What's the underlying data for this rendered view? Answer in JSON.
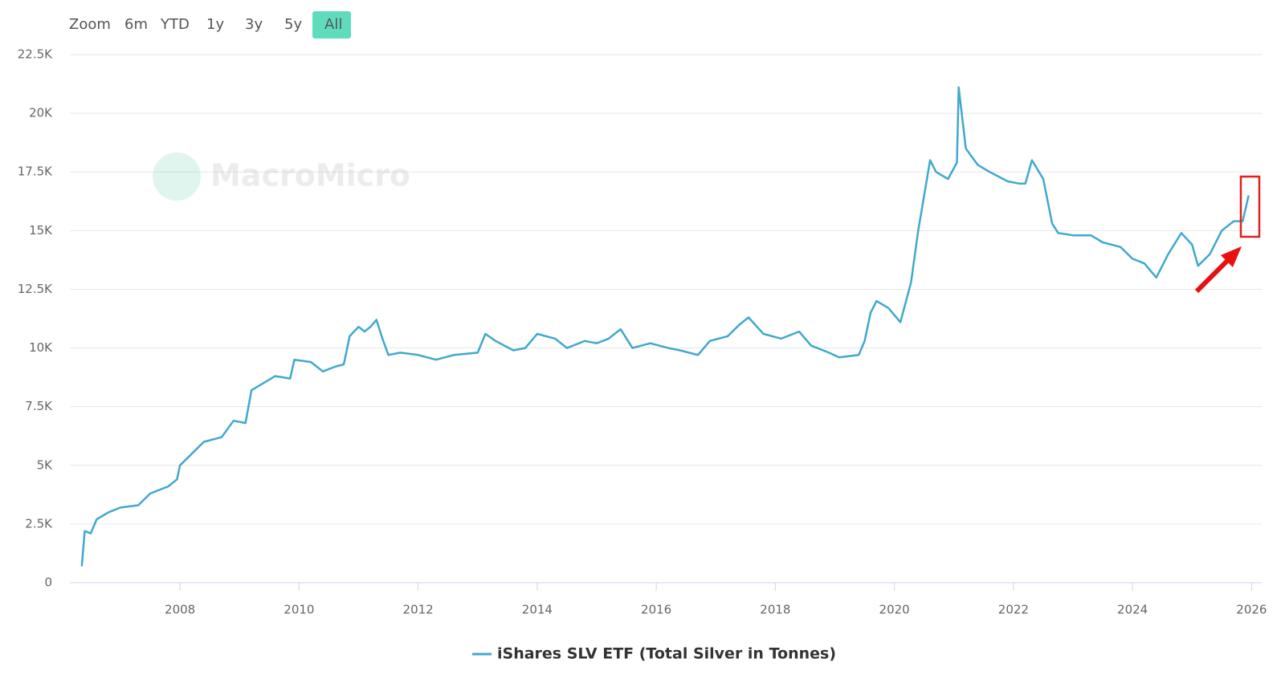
{
  "range_selector": {
    "label": "Zoom",
    "buttons": [
      "6m",
      "YTD",
      "1y",
      "3y",
      "5y",
      "All"
    ],
    "active": 5
  },
  "watermark": "MacroMicro",
  "chart_data": {
    "type": "line",
    "x": [
      2006.35,
      2006.4,
      2006.5,
      2006.6,
      2006.8,
      2007.0,
      2007.3,
      2007.5,
      2007.8,
      2007.95,
      2008.0,
      2008.2,
      2008.4,
      2008.7,
      2008.9,
      2009.1,
      2009.2,
      2009.4,
      2009.6,
      2009.85,
      2009.92,
      2010.2,
      2010.4,
      2010.6,
      2010.75,
      2010.85,
      2011.0,
      2011.1,
      2011.2,
      2011.3,
      2011.4,
      2011.5,
      2011.7,
      2012.0,
      2012.3,
      2012.6,
      2013.0,
      2013.13,
      2013.3,
      2013.6,
      2013.8,
      2014.0,
      2014.3,
      2014.5,
      2014.8,
      2015.0,
      2015.2,
      2015.4,
      2015.6,
      2015.9,
      2016.2,
      2016.4,
      2016.7,
      2016.9,
      2017.2,
      2017.4,
      2017.55,
      2017.8,
      2018.1,
      2018.4,
      2018.6,
      2018.9,
      2019.07,
      2019.4,
      2019.5,
      2019.6,
      2019.7,
      2019.9,
      2020.1,
      2020.28,
      2020.4,
      2020.5,
      2020.6,
      2020.7,
      2020.9,
      2021.05,
      2021.08,
      2021.2,
      2021.4,
      2021.6,
      2021.9,
      2022.1,
      2022.2,
      2022.31,
      2022.5,
      2022.65,
      2022.75,
      2023.0,
      2023.3,
      2023.5,
      2023.8,
      2024.0,
      2024.2,
      2024.4,
      2024.6,
      2024.82,
      2025.0,
      2025.1,
      2025.3,
      2025.5,
      2025.7,
      2025.85,
      2025.95
    ],
    "series": [
      {
        "name": "iShares SLV ETF (Total Silver in Tonnes)",
        "color": "#41a8cc",
        "values": [
          700,
          2200,
          2100,
          2700,
          3000,
          3200,
          3300,
          3800,
          4100,
          4400,
          5000,
          5500,
          6000,
          6200,
          6900,
          6800,
          8200,
          8500,
          8800,
          8700,
          9500,
          9400,
          9000,
          9200,
          9300,
          10500,
          10900,
          10700,
          10900,
          11200,
          10400,
          9700,
          9800,
          9700,
          9500,
          9700,
          9800,
          10600,
          10300,
          9900,
          10000,
          10600,
          10400,
          10000,
          10300,
          10200,
          10400,
          10800,
          10000,
          10200,
          10000,
          9900,
          9700,
          10300,
          10500,
          11000,
          11300,
          10600,
          10400,
          10700,
          10100,
          9800,
          9600,
          9700,
          10300,
          11500,
          12000,
          11700,
          11100,
          12800,
          15000,
          16500,
          18000,
          17500,
          17200,
          17900,
          21100,
          18500,
          17800,
          17500,
          17100,
          17000,
          17000,
          18000,
          17200,
          15300,
          14900,
          14800,
          14800,
          14500,
          14300,
          13800,
          13600,
          13000,
          14000,
          14900,
          14400,
          13500,
          14000,
          15000,
          15400,
          15400,
          16500
        ]
      }
    ],
    "xlim": [
      2006.15,
      2026.17
    ],
    "xticks": [
      2008,
      2010,
      2012,
      2014,
      2016,
      2018,
      2020,
      2022,
      2024,
      2026
    ],
    "ylim": [
      0,
      22500
    ],
    "yticks": [
      0,
      {
        "value": 2500,
        "label": "2.5K"
      },
      {
        "value": 5000,
        "label": "5K"
      },
      {
        "value": 7500,
        "label": "7.5K"
      },
      {
        "value": 10000,
        "label": "10K"
      },
      {
        "value": 12500,
        "label": "12.5K"
      },
      {
        "value": 15000,
        "label": "15K"
      },
      {
        "value": 17500,
        "label": "17.5K"
      },
      {
        "value": 20000,
        "label": "20K"
      },
      {
        "value": 22500,
        "label": "22.5K"
      }
    ],
    "grid": true
  }
}
